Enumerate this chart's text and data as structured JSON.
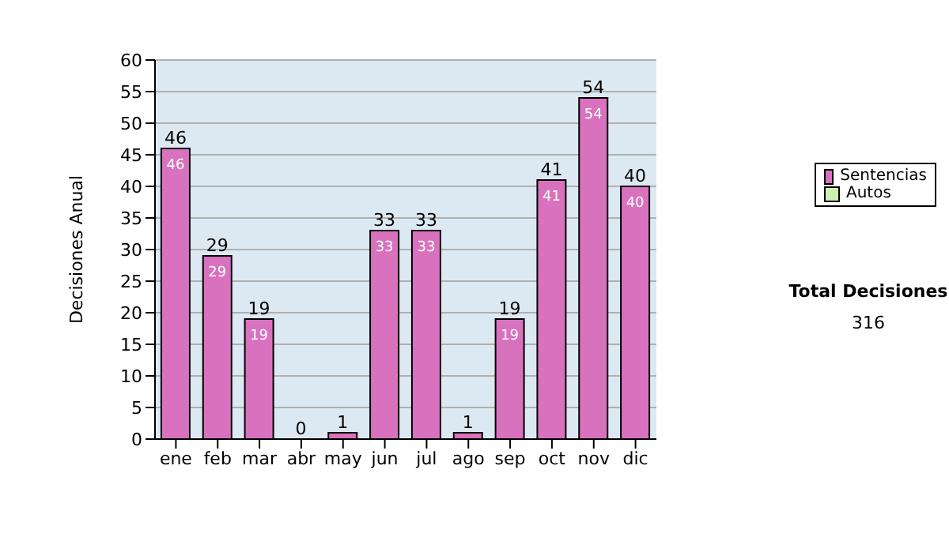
{
  "chart_data": {
    "type": "bar",
    "ylabel": "Decisiones Anual",
    "categories": [
      "ene",
      "feb",
      "mar",
      "abr",
      "may",
      "jun",
      "jul",
      "ago",
      "sep",
      "oct",
      "nov",
      "dic"
    ],
    "stacked": true,
    "series": [
      {
        "name": "Sentencias",
        "color": "#d972be",
        "values": [
          46,
          29,
          19,
          0,
          1,
          33,
          33,
          1,
          19,
          41,
          54,
          40
        ],
        "value_labels": [
          "46",
          "29",
          "19",
          null,
          null,
          "33",
          "33",
          null,
          "19",
          "41",
          "54",
          "40"
        ]
      },
      {
        "name": "Autos",
        "color": "#ccf0b0",
        "values": [
          0,
          0,
          0,
          0,
          0,
          0,
          0,
          0,
          0,
          0,
          0,
          0
        ]
      }
    ],
    "totals": [
      "46",
      "29",
      "19",
      "0",
      "1",
      "33",
      "33",
      "1",
      "19",
      "41",
      "54",
      "40"
    ],
    "ylim": [
      0,
      60
    ],
    "yticks": [
      0,
      5,
      10,
      15,
      20,
      25,
      30,
      35,
      40,
      45,
      50,
      55,
      60
    ],
    "grid": "y",
    "legend": "right",
    "annotations": [
      "Total Decisiones",
      "316"
    ]
  }
}
